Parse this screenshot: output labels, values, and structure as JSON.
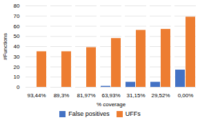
{
  "chart_data": {
    "type": "bar",
    "categories": [
      "93,44%",
      "89,3%",
      "81,97%",
      "63,93%",
      "31,15%",
      "29,52%",
      "0,00%"
    ],
    "series": [
      {
        "name": "False positives",
        "color": "#4472c4",
        "values": [
          0,
          0,
          0,
          1,
          5,
          5,
          17
        ]
      },
      {
        "name": "UFFs",
        "color": "#ed7d31",
        "values": [
          35,
          35,
          39,
          48,
          56,
          57,
          69
        ]
      }
    ],
    "xlabel": "% coverage",
    "ylabel": "#Functions",
    "ylim": [
      0,
      80
    ],
    "yticks": [
      0,
      10,
      20,
      30,
      40,
      50,
      60,
      70,
      80
    ],
    "grid": true,
    "legend": "bottom"
  }
}
